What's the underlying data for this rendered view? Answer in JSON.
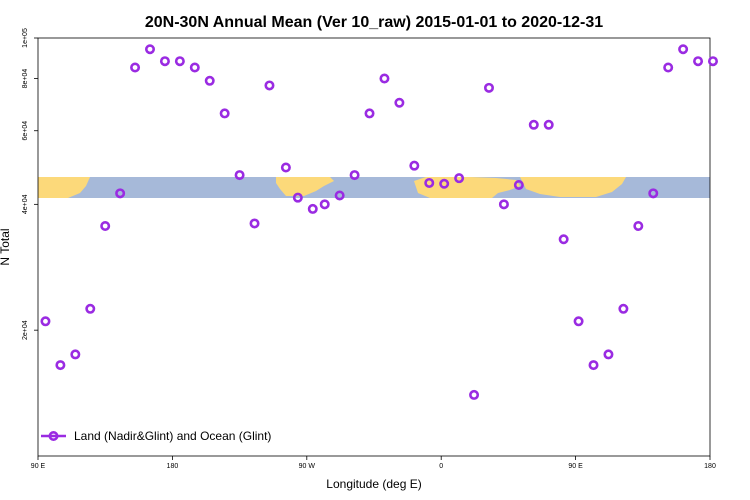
{
  "chart_data": {
    "type": "scatter",
    "title": "20N-30N Annual Mean (Ver 10_raw)   2015-01-01 to 2020-12-31",
    "xlabel": "Longitude (deg E)",
    "ylabel": "N Total",
    "x_ticks": [
      {
        "value": 90,
        "label": "90 E"
      },
      {
        "value": 180,
        "label": "180"
      },
      {
        "value": 270,
        "label": "90 W"
      },
      {
        "value": 360,
        "label": "0"
      },
      {
        "value": 450,
        "label": "90 E"
      },
      {
        "value": 540,
        "label": "180"
      }
    ],
    "y_ticks": [
      {
        "value": 20000,
        "label": "2e+04"
      },
      {
        "value": 40000,
        "label": "4e+04"
      },
      {
        "value": 60000,
        "label": "6e+04"
      },
      {
        "value": 80000,
        "label": "8e+04"
      },
      {
        "value": 100000,
        "label": "1e+05"
      }
    ],
    "xlim": [
      90,
      540
    ],
    "ylim": [
      10000,
      100000
    ],
    "y_scale": "log",
    "grid": false,
    "legend_position": "bottom-left",
    "band_colors": {
      "ocean": "#a6b9d9",
      "land": "#fcd97a"
    },
    "series": [
      {
        "name": "Land (Nadir&Glint) and Ocean (Glint)",
        "color": "#9a2be2",
        "marker": "open-circle",
        "x": [
          95,
          105,
          115,
          125,
          135,
          145,
          155,
          165,
          175,
          185,
          195,
          205,
          215,
          225,
          235,
          245,
          256,
          264,
          274,
          282,
          292,
          302,
          312,
          322,
          332,
          342,
          352,
          362,
          372,
          382,
          392,
          402,
          412,
          422,
          432,
          442,
          452,
          462,
          472,
          482,
          492,
          502,
          512,
          522,
          532,
          542
        ],
        "y": [
          21000,
          16500,
          17500,
          22500,
          35500,
          42500,
          85000,
          94000,
          88000,
          88000,
          85000,
          79000,
          66000,
          47000,
          36000,
          77000,
          49000,
          41500,
          39000,
          40000,
          42000,
          47000,
          66000,
          80000,
          70000,
          49500,
          45000,
          44800,
          46200,
          14000,
          76000,
          40000,
          44500,
          62000,
          62000,
          33000,
          21000,
          16500,
          17500,
          22500,
          35500,
          42500,
          85000,
          94000,
          88000,
          88000
        ]
      }
    ]
  }
}
